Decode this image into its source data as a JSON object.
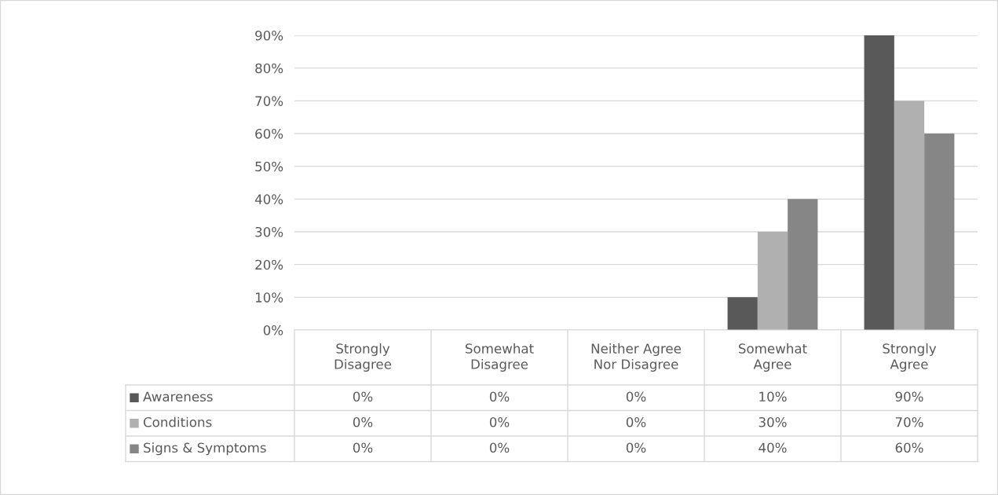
{
  "chart_data": {
    "type": "bar",
    "categories": [
      "Strongly\nDisagree",
      "Somewhat\nDisagree",
      "Neither Agree\nNor Disagree",
      "Somewhat\nAgree",
      "Strongly\nAgree"
    ],
    "series": [
      {
        "name": "Awareness",
        "color": "#595959",
        "values": [
          0,
          0,
          0,
          10,
          90
        ],
        "value_labels": [
          "0%",
          "0%",
          "0%",
          "10%",
          "90%"
        ]
      },
      {
        "name": "Conditions",
        "color": "#b0b0b0",
        "values": [
          0,
          0,
          0,
          30,
          70
        ],
        "value_labels": [
          "0%",
          "0%",
          "0%",
          "30%",
          "70%"
        ]
      },
      {
        "name": "Signs & Symptoms",
        "color": "#868686",
        "values": [
          0,
          0,
          0,
          40,
          60
        ],
        "value_labels": [
          "0%",
          "0%",
          "0%",
          "40%",
          "60%"
        ]
      }
    ],
    "ylim": [
      0,
      90
    ],
    "yticks": [
      {
        "value": 0,
        "label": "0%"
      },
      {
        "value": 10,
        "label": "10%"
      },
      {
        "value": 20,
        "label": "20%"
      },
      {
        "value": 30,
        "label": "30%"
      },
      {
        "value": 40,
        "label": "40%"
      },
      {
        "value": 50,
        "label": "50%"
      },
      {
        "value": 60,
        "label": "60%"
      },
      {
        "value": 70,
        "label": "70%"
      },
      {
        "value": 80,
        "label": "80%"
      },
      {
        "value": 90,
        "label": "90%"
      }
    ],
    "grid": "y",
    "legend": "bottom"
  }
}
